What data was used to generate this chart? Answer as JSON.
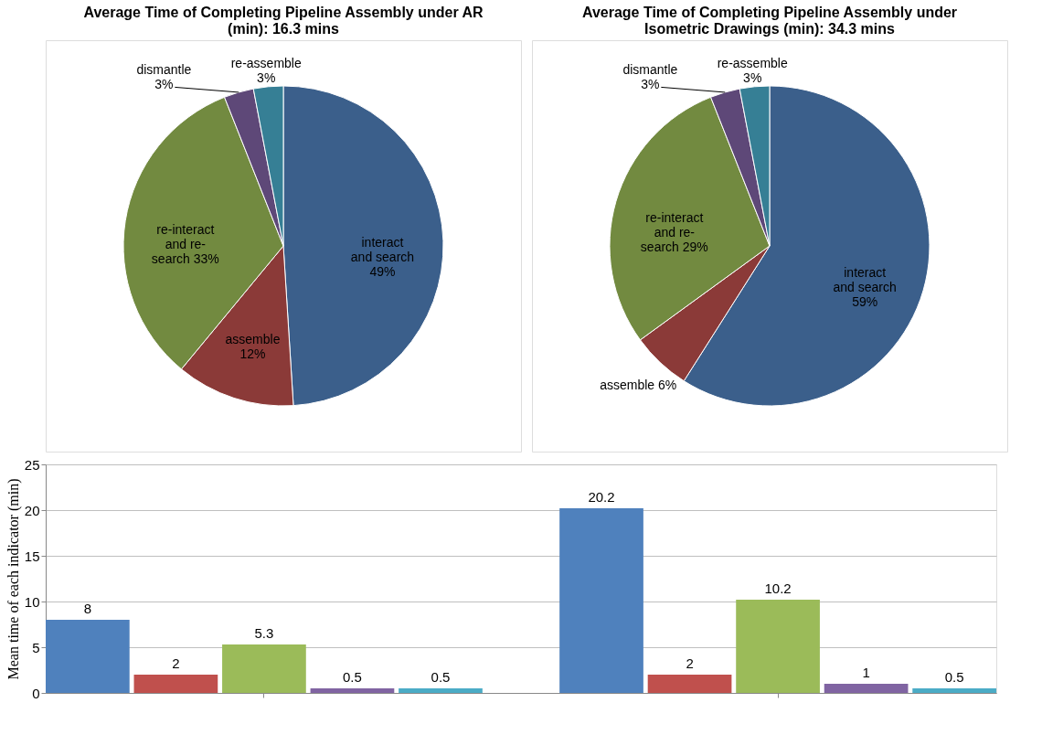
{
  "chart_data": [
    {
      "type": "pie",
      "title": "Average Time of Completing Pipeline Assembly under AR (min): 16.3 mins",
      "categories": [
        "interact and search",
        "assemble",
        "re-interact and re-search",
        "dismantle",
        "re-assemble"
      ],
      "values": [
        49,
        12,
        33,
        3,
        3
      ],
      "value_labels": [
        "49%",
        "12%",
        "33%",
        "3%",
        "3%"
      ],
      "colors": [
        "#3b5f8b",
        "#8b3a38",
        "#728a40",
        "#5e4878",
        "#367f95"
      ],
      "legend": false
    },
    {
      "type": "pie",
      "title": "Average Time of Completing Pipeline Assembly under Isometric Drawings (min): 34.3 mins",
      "categories": [
        "interact and search",
        "assemble",
        "re-interact and re-search",
        "dismantle",
        "re-assemble"
      ],
      "values": [
        59,
        6,
        29,
        3,
        3
      ],
      "value_labels": [
        "59%",
        "6%",
        "29%",
        "3%",
        "3%"
      ],
      "colors": [
        "#3b5f8b",
        "#8b3a38",
        "#728a40",
        "#5e4878",
        "#367f95"
      ],
      "legend": false
    },
    {
      "type": "bar",
      "categories": [
        null,
        null
      ],
      "ylabel": "Mean time of each indicator (min)",
      "ylim": [
        0,
        25
      ],
      "yticks": [
        0,
        5,
        10,
        15,
        20,
        25
      ],
      "grid": "y",
      "data_labels": true,
      "legend": false,
      "tick_labels": "y",
      "series": [
        {
          "color": "#4f81bd",
          "values": [
            8,
            20.2
          ]
        },
        {
          "color": "#c0504d",
          "values": [
            2,
            2
          ]
        },
        {
          "color": "#9bbb59",
          "values": [
            5.3,
            10.2
          ]
        },
        {
          "color": "#8064a2",
          "values": [
            0.5,
            1
          ]
        },
        {
          "color": "#4bacc6",
          "values": [
            0.5,
            0.5
          ]
        }
      ]
    }
  ]
}
